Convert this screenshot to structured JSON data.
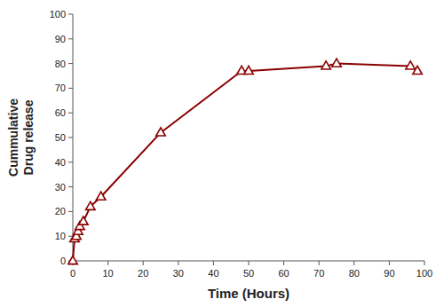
{
  "chart_data": {
    "type": "line",
    "x": [
      0,
      0.5,
      1,
      1.5,
      2,
      3,
      5,
      8,
      25,
      48,
      50,
      72,
      75,
      96,
      98
    ],
    "values": [
      0,
      9,
      10,
      12,
      14,
      16,
      22,
      26,
      52,
      77,
      77,
      79,
      80,
      79,
      77
    ],
    "color": "#8B0000",
    "marker": "triangle",
    "xlabel": "Time (Hours)",
    "ylabel": "Cummulative\nDrug release",
    "xlim": [
      0,
      100
    ],
    "ylim": [
      0,
      100
    ],
    "xticks": [
      0,
      10,
      20,
      30,
      40,
      50,
      60,
      70,
      80,
      90,
      100
    ],
    "yticks": [
      0,
      10,
      20,
      30,
      40,
      50,
      60,
      70,
      80,
      90,
      100
    ],
    "grid": false
  }
}
